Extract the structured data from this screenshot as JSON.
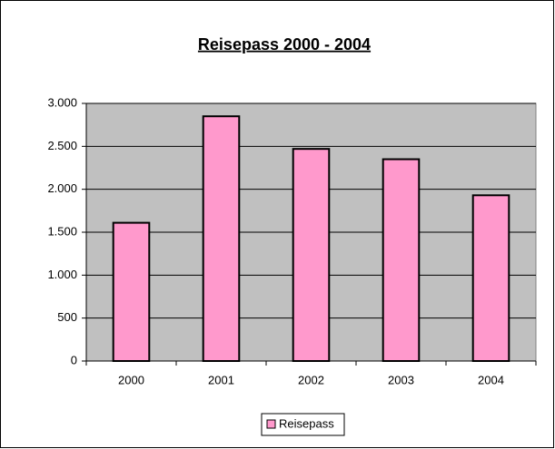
{
  "chart_data": {
    "type": "bar",
    "title": "Reisepass 2000 - 2004",
    "categories": [
      "2000",
      "2001",
      "2002",
      "2003",
      "2004"
    ],
    "series": [
      {
        "name": "Reisepass",
        "color": "#ff99cc",
        "values": [
          1610,
          2850,
          2470,
          2350,
          1930
        ]
      }
    ],
    "ylim": [
      0,
      3000
    ],
    "yticks": [
      0,
      500,
      {
        "value": 1000,
        "label": "1.000"
      },
      {
        "value": 1500,
        "label": "1.500"
      },
      {
        "value": 2000,
        "label": "2.000"
      },
      {
        "value": 2500,
        "label": "2.500"
      },
      {
        "value": 3000,
        "label": "3.000"
      }
    ],
    "grid": true,
    "legend": "bottom"
  }
}
